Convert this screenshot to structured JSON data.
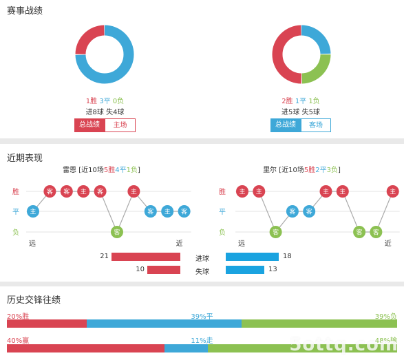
{
  "section1": {
    "title": "赛事战绩",
    "left": {
      "win": "1胜",
      "draw": "3平",
      "loss": "0负",
      "goals_for": "进8球",
      "goals_against": "失4球",
      "tab_total": "总战绩",
      "tab_venue": "主场",
      "donut": {
        "win": 1,
        "draw": 3,
        "loss": 0
      }
    },
    "right": {
      "win": "2胜",
      "draw": "1平",
      "loss": "1负",
      "goals_for": "进5球",
      "goals_against": "失5球",
      "tab_total": "总战绩",
      "tab_venue": "客场",
      "donut": {
        "win": 2,
        "draw": 1,
        "loss": 1
      }
    }
  },
  "section2": {
    "title": "近期表现",
    "left": {
      "team": "雷恩",
      "summary_prefix": "[近10场",
      "w": "5胜",
      "d": "4平",
      "l": "1负",
      "summary_suffix": "]",
      "row_labels": [
        "胜",
        "平",
        "负"
      ],
      "far": "远",
      "near": "近",
      "matches": [
        {
          "venue": "主",
          "result": "D"
        },
        {
          "venue": "客",
          "result": "W"
        },
        {
          "venue": "客",
          "result": "W"
        },
        {
          "venue": "主",
          "result": "W"
        },
        {
          "venue": "客",
          "result": "W"
        },
        {
          "venue": "客",
          "result": "L"
        },
        {
          "venue": "主",
          "result": "W"
        },
        {
          "venue": "客",
          "result": "D"
        },
        {
          "venue": "主",
          "result": "D"
        },
        {
          "venue": "客",
          "result": "D"
        }
      ]
    },
    "right": {
      "team": "里尔",
      "summary_prefix": "[近10场",
      "w": "5胜",
      "d": "2平",
      "l": "3负",
      "summary_suffix": "]",
      "row_labels": [
        "胜",
        "平",
        "负"
      ],
      "far": "远",
      "near": "近",
      "matches": [
        {
          "venue": "主",
          "result": "W"
        },
        {
          "venue": "主",
          "result": "W"
        },
        {
          "venue": "客",
          "result": "L"
        },
        {
          "venue": "客",
          "result": "D"
        },
        {
          "venue": "客",
          "result": "D"
        },
        {
          "venue": "主",
          "result": "W"
        },
        {
          "venue": "主",
          "result": "W"
        },
        {
          "venue": "客",
          "result": "L"
        },
        {
          "venue": "客",
          "result": "L"
        },
        {
          "venue": "主",
          "result": "W"
        }
      ]
    },
    "goals": {
      "label_for": "进球",
      "label_against": "失球",
      "left_for": 21,
      "left_against": 10,
      "right_for": 18,
      "right_against": 13
    }
  },
  "section3": {
    "title": "历史交锋往绩",
    "row1": {
      "left_label": "20%胜",
      "mid_label": "39%平",
      "right_label": "39%负",
      "win": 20,
      "draw": 39,
      "loss": 39
    },
    "row2": {
      "left_label": "40%赢",
      "mid_label": "11%走",
      "right_label": "48%输",
      "win": 40,
      "draw": 11,
      "loss": 48
    }
  },
  "watermark": "5ottq.com",
  "colors": {
    "win": "#d94452",
    "draw": "#3ea8d8",
    "loss": "#8cc152",
    "goals_for": "#1aa3e0"
  }
}
